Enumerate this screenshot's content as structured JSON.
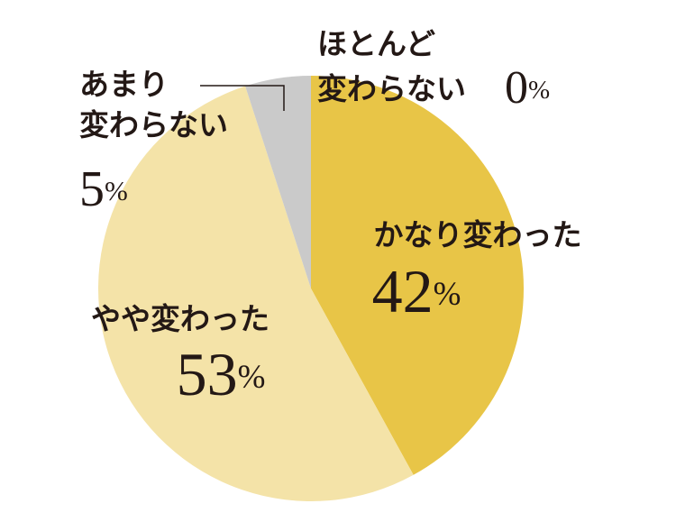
{
  "chart_data": {
    "type": "pie",
    "categories": [
      "かなり変わった",
      "やや変わった",
      "あまり\n変わらない",
      "ほとんど\n変わらない"
    ],
    "values": [
      42,
      53,
      5,
      0
    ],
    "value_labels": [
      "42%",
      "53%",
      "5%",
      "0%"
    ],
    "colors": [
      "#e8c547",
      "#f4e3a8",
      "#cacaca",
      "#b0b0b0"
    ]
  }
}
